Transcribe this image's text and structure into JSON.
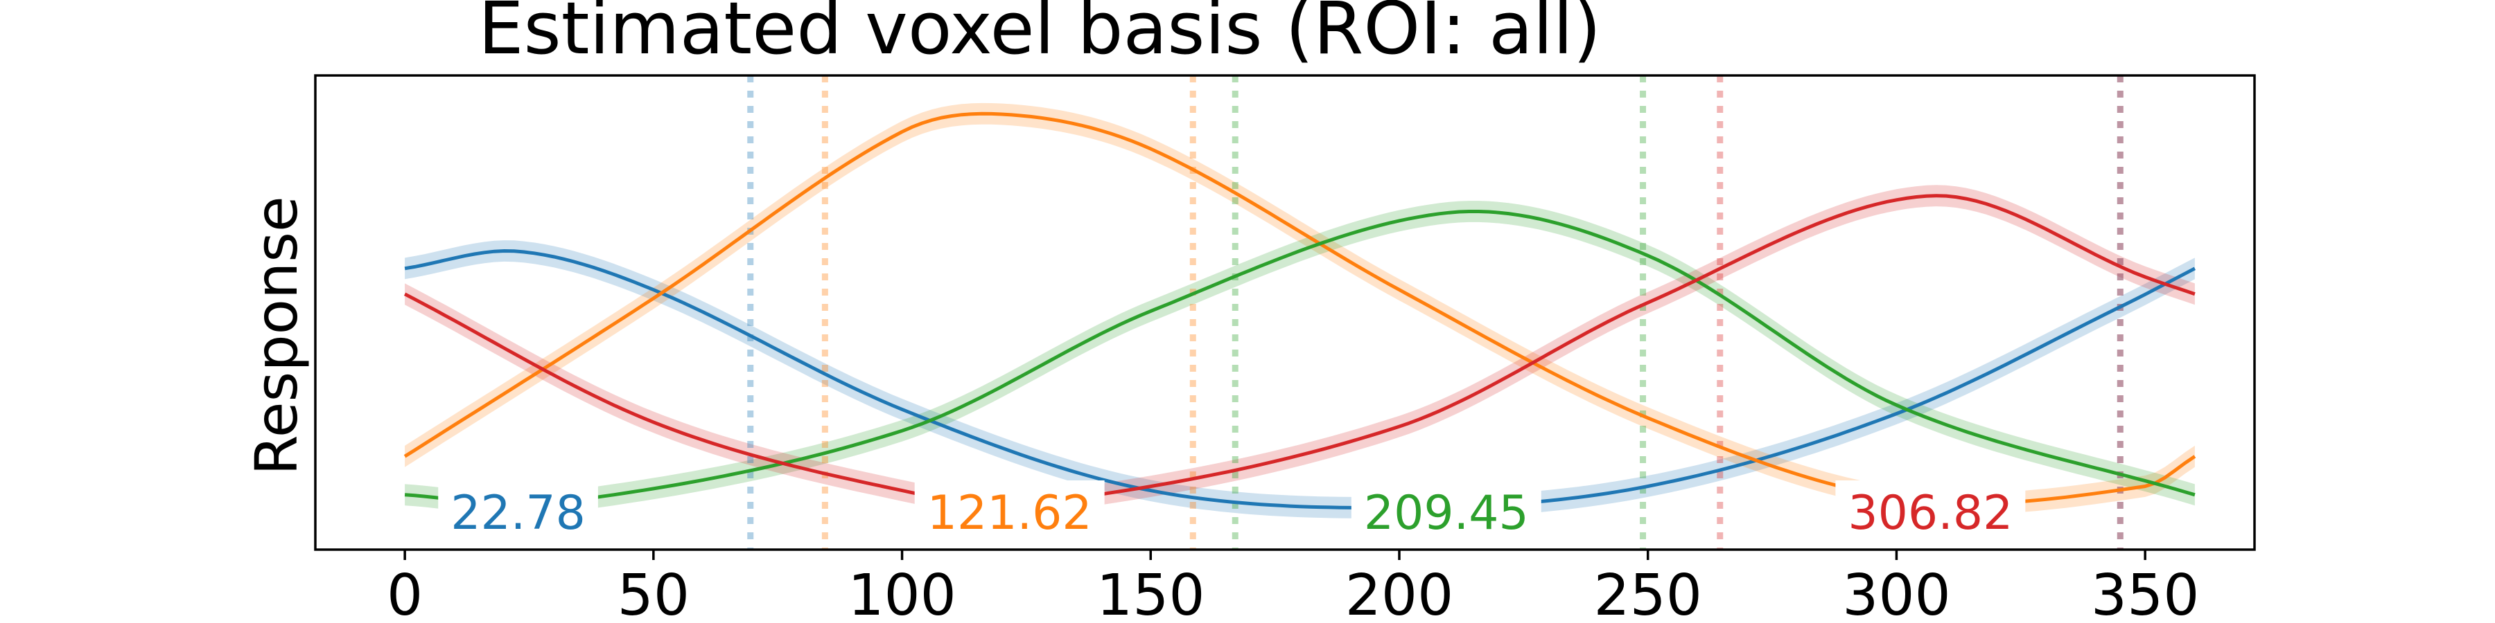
{
  "chart_data": {
    "type": "line",
    "title": "Estimated voxel basis (ROI: all)",
    "xlabel": "",
    "ylabel": "Response",
    "xlim": [
      -18,
      372
    ],
    "ylim": [
      0,
      1
    ],
    "xticks": [
      0,
      50,
      100,
      150,
      200,
      250,
      300,
      350
    ],
    "grid": false,
    "legend": "none",
    "y_tick_labels_shown": false,
    "series": [
      {
        "color": "#1f77b4",
        "peak_label": "22.78",
        "peak_x": 22.78,
        "x": [
          0,
          22.78,
          50,
          100,
          150,
          202.78,
          250,
          300,
          345,
          360
        ],
        "y": [
          0.6,
          0.64,
          0.55,
          0.27,
          0.08,
          0.04,
          0.09,
          0.26,
          0.51,
          0.6
        ],
        "band_halfwidth": 0.025
      },
      {
        "color": "#ff7f0e",
        "peak_label": "121.62",
        "peak_x": 121.62,
        "x": [
          0,
          50,
          100,
          121.62,
          150,
          200,
          250,
          301.62,
          350,
          360
        ],
        "y": [
          0.16,
          0.53,
          0.92,
          0.96,
          0.88,
          0.55,
          0.25,
          0.06,
          0.09,
          0.16
        ],
        "band_halfwidth": 0.025
      },
      {
        "color": "#2ca02c",
        "peak_label": "209.45",
        "peak_x": 209.45,
        "x": [
          0,
          29.45,
          100,
          150,
          209.45,
          250,
          300,
          360
        ],
        "y": [
          0.07,
          0.05,
          0.22,
          0.5,
          0.73,
          0.63,
          0.28,
          0.07
        ],
        "band_halfwidth": 0.025
      },
      {
        "color": "#d62728",
        "peak_label": "306.82",
        "peak_x": 306.82,
        "x": [
          0,
          50,
          100,
          126.82,
          200,
          250,
          306.82,
          350,
          360
        ],
        "y": [
          0.54,
          0.24,
          0.08,
          0.05,
          0.23,
          0.52,
          0.77,
          0.58,
          0.54
        ],
        "band_halfwidth": 0.025
      }
    ],
    "vertical_lines": [
      {
        "x": 69.5,
        "color": "#1f77b4"
      },
      {
        "x": 84.5,
        "color": "#ff7f0e"
      },
      {
        "x": 158.5,
        "color": "#ff7f0e"
      },
      {
        "x": 167.0,
        "color": "#2ca02c"
      },
      {
        "x": 249.0,
        "color": "#2ca02c"
      },
      {
        "x": 264.5,
        "color": "#d62728"
      },
      {
        "x": 345.0,
        "color": "#1f77b4"
      },
      {
        "x": 345.0,
        "color": "#d62728"
      }
    ]
  }
}
